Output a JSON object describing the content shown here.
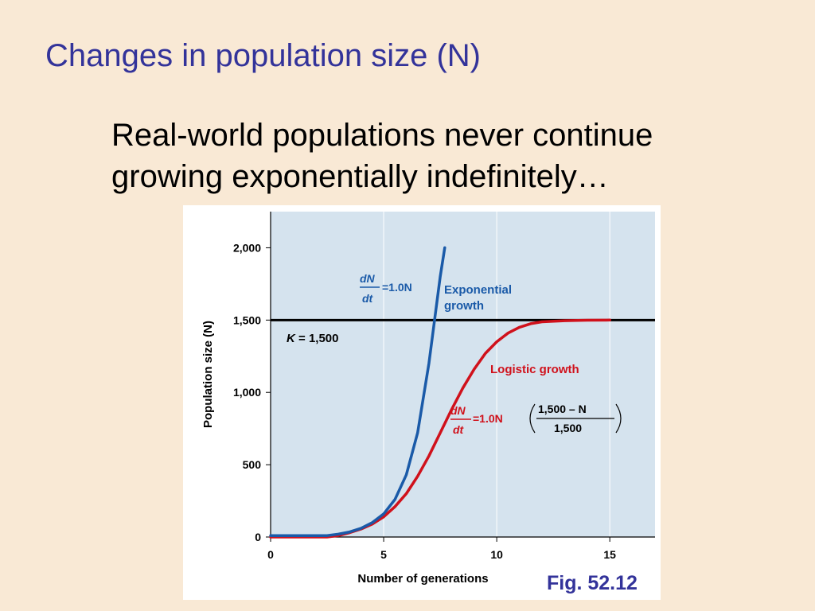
{
  "slide": {
    "title": "Changes in population size (N)",
    "body": "Real-world populations never continue growing exponentially indefinitely…",
    "caption": "Fig. 52.12"
  },
  "colors": {
    "background": "#f9e9d5",
    "title": "#33339a",
    "plot_area": "#d5e3ee",
    "exponential": "#1a5aa8",
    "logistic": "#d0111b",
    "carrying_capacity": "#000000"
  },
  "chart_data": {
    "type": "line",
    "xlabel": "Number of generations",
    "ylabel": "Population size (N)",
    "xlim": [
      0,
      17
    ],
    "ylim": [
      0,
      2250
    ],
    "x_ticks": [
      0,
      5,
      10,
      15
    ],
    "y_ticks": [
      0,
      500,
      1000,
      1500,
      2000
    ],
    "y_tick_labels": [
      "0",
      "500",
      "1,000",
      "1,500",
      "2,000"
    ],
    "grid": "vertical",
    "carrying_capacity": {
      "value": 1500,
      "label_var": "K",
      "label_rest": " = 1,500"
    },
    "series": [
      {
        "name": "Exponential growth",
        "label_line1": "Exponential",
        "label_line2": "growth",
        "color": "#1a5aa8",
        "equation": {
          "num": "dN",
          "den": "dt",
          "rhs": "=1.0N"
        },
        "x": [
          0,
          2.5,
          3,
          3.5,
          4,
          4.5,
          5,
          5.5,
          6,
          6.5,
          7,
          7.25,
          7.5,
          7.7
        ],
        "y": [
          10,
          10,
          20,
          35,
          60,
          100,
          160,
          260,
          430,
          720,
          1200,
          1500,
          1800,
          2000
        ]
      },
      {
        "name": "Logistic growth",
        "color": "#d0111b",
        "equation": {
          "num": "dN",
          "den": "dt",
          "rhs": "=1.0N",
          "frac_num": "1,500 – N",
          "frac_den": "1,500"
        },
        "x": [
          0,
          2.5,
          3,
          3.5,
          4,
          4.5,
          5,
          5.5,
          6,
          6.5,
          7,
          7.5,
          8,
          8.5,
          9,
          9.5,
          10,
          10.5,
          11,
          11.5,
          12,
          13,
          14,
          15
        ],
        "y": [
          0,
          0,
          10,
          30,
          55,
          90,
          140,
          210,
          300,
          420,
          560,
          720,
          880,
          1030,
          1160,
          1270,
          1350,
          1410,
          1450,
          1475,
          1488,
          1496,
          1499,
          1500
        ]
      }
    ]
  }
}
